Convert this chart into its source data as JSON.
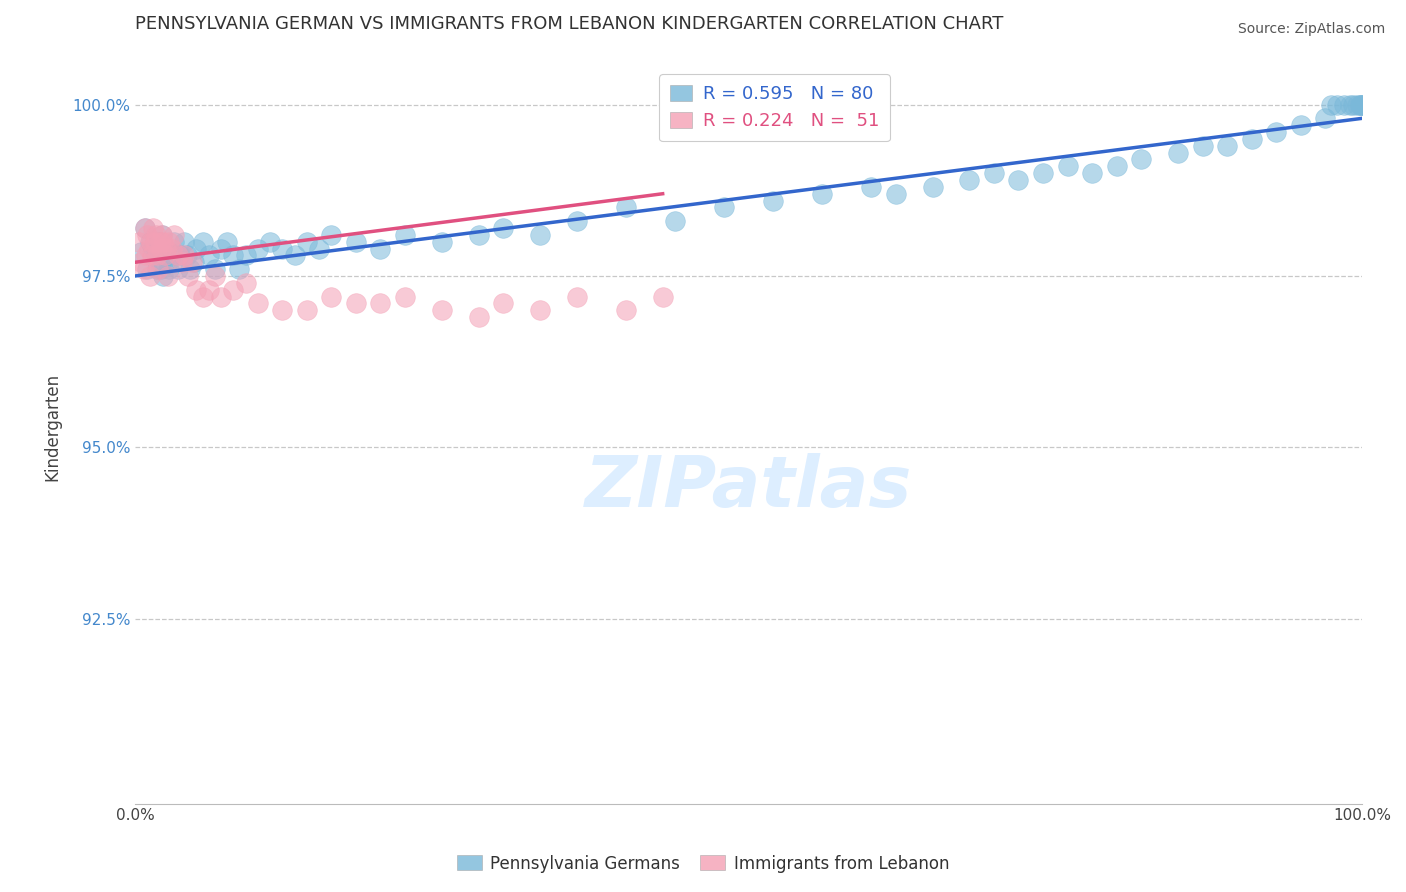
{
  "title": "PENNSYLVANIA GERMAN VS IMMIGRANTS FROM LEBANON KINDERGARTEN CORRELATION CHART",
  "source": "Source: ZipAtlas.com",
  "ylabel": "Kindergarten",
  "xlim": [
    0.0,
    1.0
  ],
  "ylim": [
    0.898,
    1.008
  ],
  "yticks": [
    0.925,
    0.95,
    0.975,
    1.0
  ],
  "yticklabels": [
    "92.5%",
    "95.0%",
    "97.5%",
    "100.0%"
  ],
  "legend_labels": [
    "Pennsylvania Germans",
    "Immigrants from Lebanon"
  ],
  "R_blue": 0.595,
  "N_blue": 80,
  "R_pink": 0.224,
  "N_pink": 51,
  "blue_color": "#7ab8d9",
  "pink_color": "#f4a0b5",
  "blue_line_color": "#3366cc",
  "pink_line_color": "#e05080",
  "background_color": "#ffffff",
  "grid_color": "#c8c8c8",
  "watermark_color": "#ddeeff",
  "blue_x": [
    0.005,
    0.008,
    0.01,
    0.012,
    0.015,
    0.017,
    0.018,
    0.019,
    0.02,
    0.021,
    0.022,
    0.023,
    0.025,
    0.027,
    0.028,
    0.03,
    0.032,
    0.035,
    0.037,
    0.04,
    0.042,
    0.045,
    0.048,
    0.05,
    0.055,
    0.06,
    0.065,
    0.07,
    0.075,
    0.08,
    0.085,
    0.09,
    0.1,
    0.11,
    0.12,
    0.13,
    0.14,
    0.15,
    0.16,
    0.18,
    0.2,
    0.22,
    0.25,
    0.28,
    0.3,
    0.33,
    0.36,
    0.4,
    0.44,
    0.48,
    0.52,
    0.56,
    0.6,
    0.62,
    0.65,
    0.68,
    0.7,
    0.72,
    0.74,
    0.76,
    0.78,
    0.8,
    0.82,
    0.85,
    0.87,
    0.89,
    0.91,
    0.93,
    0.95,
    0.97,
    0.975,
    0.98,
    0.985,
    0.99,
    0.993,
    0.996,
    0.998,
    0.999,
    0.9995,
    1.0
  ],
  "blue_y": [
    0.9785,
    0.982,
    0.976,
    0.98,
    0.979,
    0.978,
    0.976,
    0.98,
    0.977,
    0.976,
    0.981,
    0.975,
    0.979,
    0.977,
    0.976,
    0.978,
    0.98,
    0.976,
    0.978,
    0.98,
    0.978,
    0.976,
    0.977,
    0.979,
    0.98,
    0.978,
    0.976,
    0.979,
    0.98,
    0.978,
    0.976,
    0.978,
    0.979,
    0.98,
    0.979,
    0.978,
    0.98,
    0.979,
    0.981,
    0.98,
    0.979,
    0.981,
    0.98,
    0.981,
    0.982,
    0.981,
    0.983,
    0.985,
    0.983,
    0.985,
    0.986,
    0.987,
    0.988,
    0.987,
    0.988,
    0.989,
    0.99,
    0.989,
    0.99,
    0.991,
    0.99,
    0.991,
    0.992,
    0.993,
    0.994,
    0.994,
    0.995,
    0.996,
    0.997,
    0.998,
    1.0,
    1.0,
    1.0,
    1.0,
    1.0,
    1.0,
    1.0,
    1.0,
    1.0,
    1.0
  ],
  "pink_x": [
    0.003,
    0.005,
    0.007,
    0.008,
    0.009,
    0.01,
    0.011,
    0.012,
    0.013,
    0.014,
    0.015,
    0.016,
    0.017,
    0.018,
    0.019,
    0.02,
    0.021,
    0.022,
    0.023,
    0.024,
    0.025,
    0.027,
    0.028,
    0.03,
    0.032,
    0.035,
    0.038,
    0.04,
    0.043,
    0.046,
    0.05,
    0.055,
    0.06,
    0.065,
    0.07,
    0.08,
    0.09,
    0.1,
    0.12,
    0.14,
    0.16,
    0.18,
    0.2,
    0.22,
    0.25,
    0.28,
    0.3,
    0.33,
    0.36,
    0.4,
    0.43
  ],
  "pink_y": [
    0.98,
    0.977,
    0.976,
    0.982,
    0.978,
    0.981,
    0.979,
    0.975,
    0.98,
    0.978,
    0.982,
    0.98,
    0.981,
    0.978,
    0.976,
    0.98,
    0.979,
    0.981,
    0.98,
    0.978,
    0.979,
    0.975,
    0.98,
    0.979,
    0.981,
    0.978,
    0.977,
    0.978,
    0.975,
    0.977,
    0.973,
    0.972,
    0.973,
    0.975,
    0.972,
    0.973,
    0.974,
    0.971,
    0.97,
    0.97,
    0.972,
    0.971,
    0.971,
    0.972,
    0.97,
    0.969,
    0.971,
    0.97,
    0.972,
    0.97,
    0.972
  ],
  "blue_trendline_x": [
    0.0,
    1.0
  ],
  "blue_trendline_y": [
    0.975,
    0.998
  ],
  "pink_trendline_x": [
    0.0,
    0.43
  ],
  "pink_trendline_y": [
    0.977,
    0.987
  ]
}
